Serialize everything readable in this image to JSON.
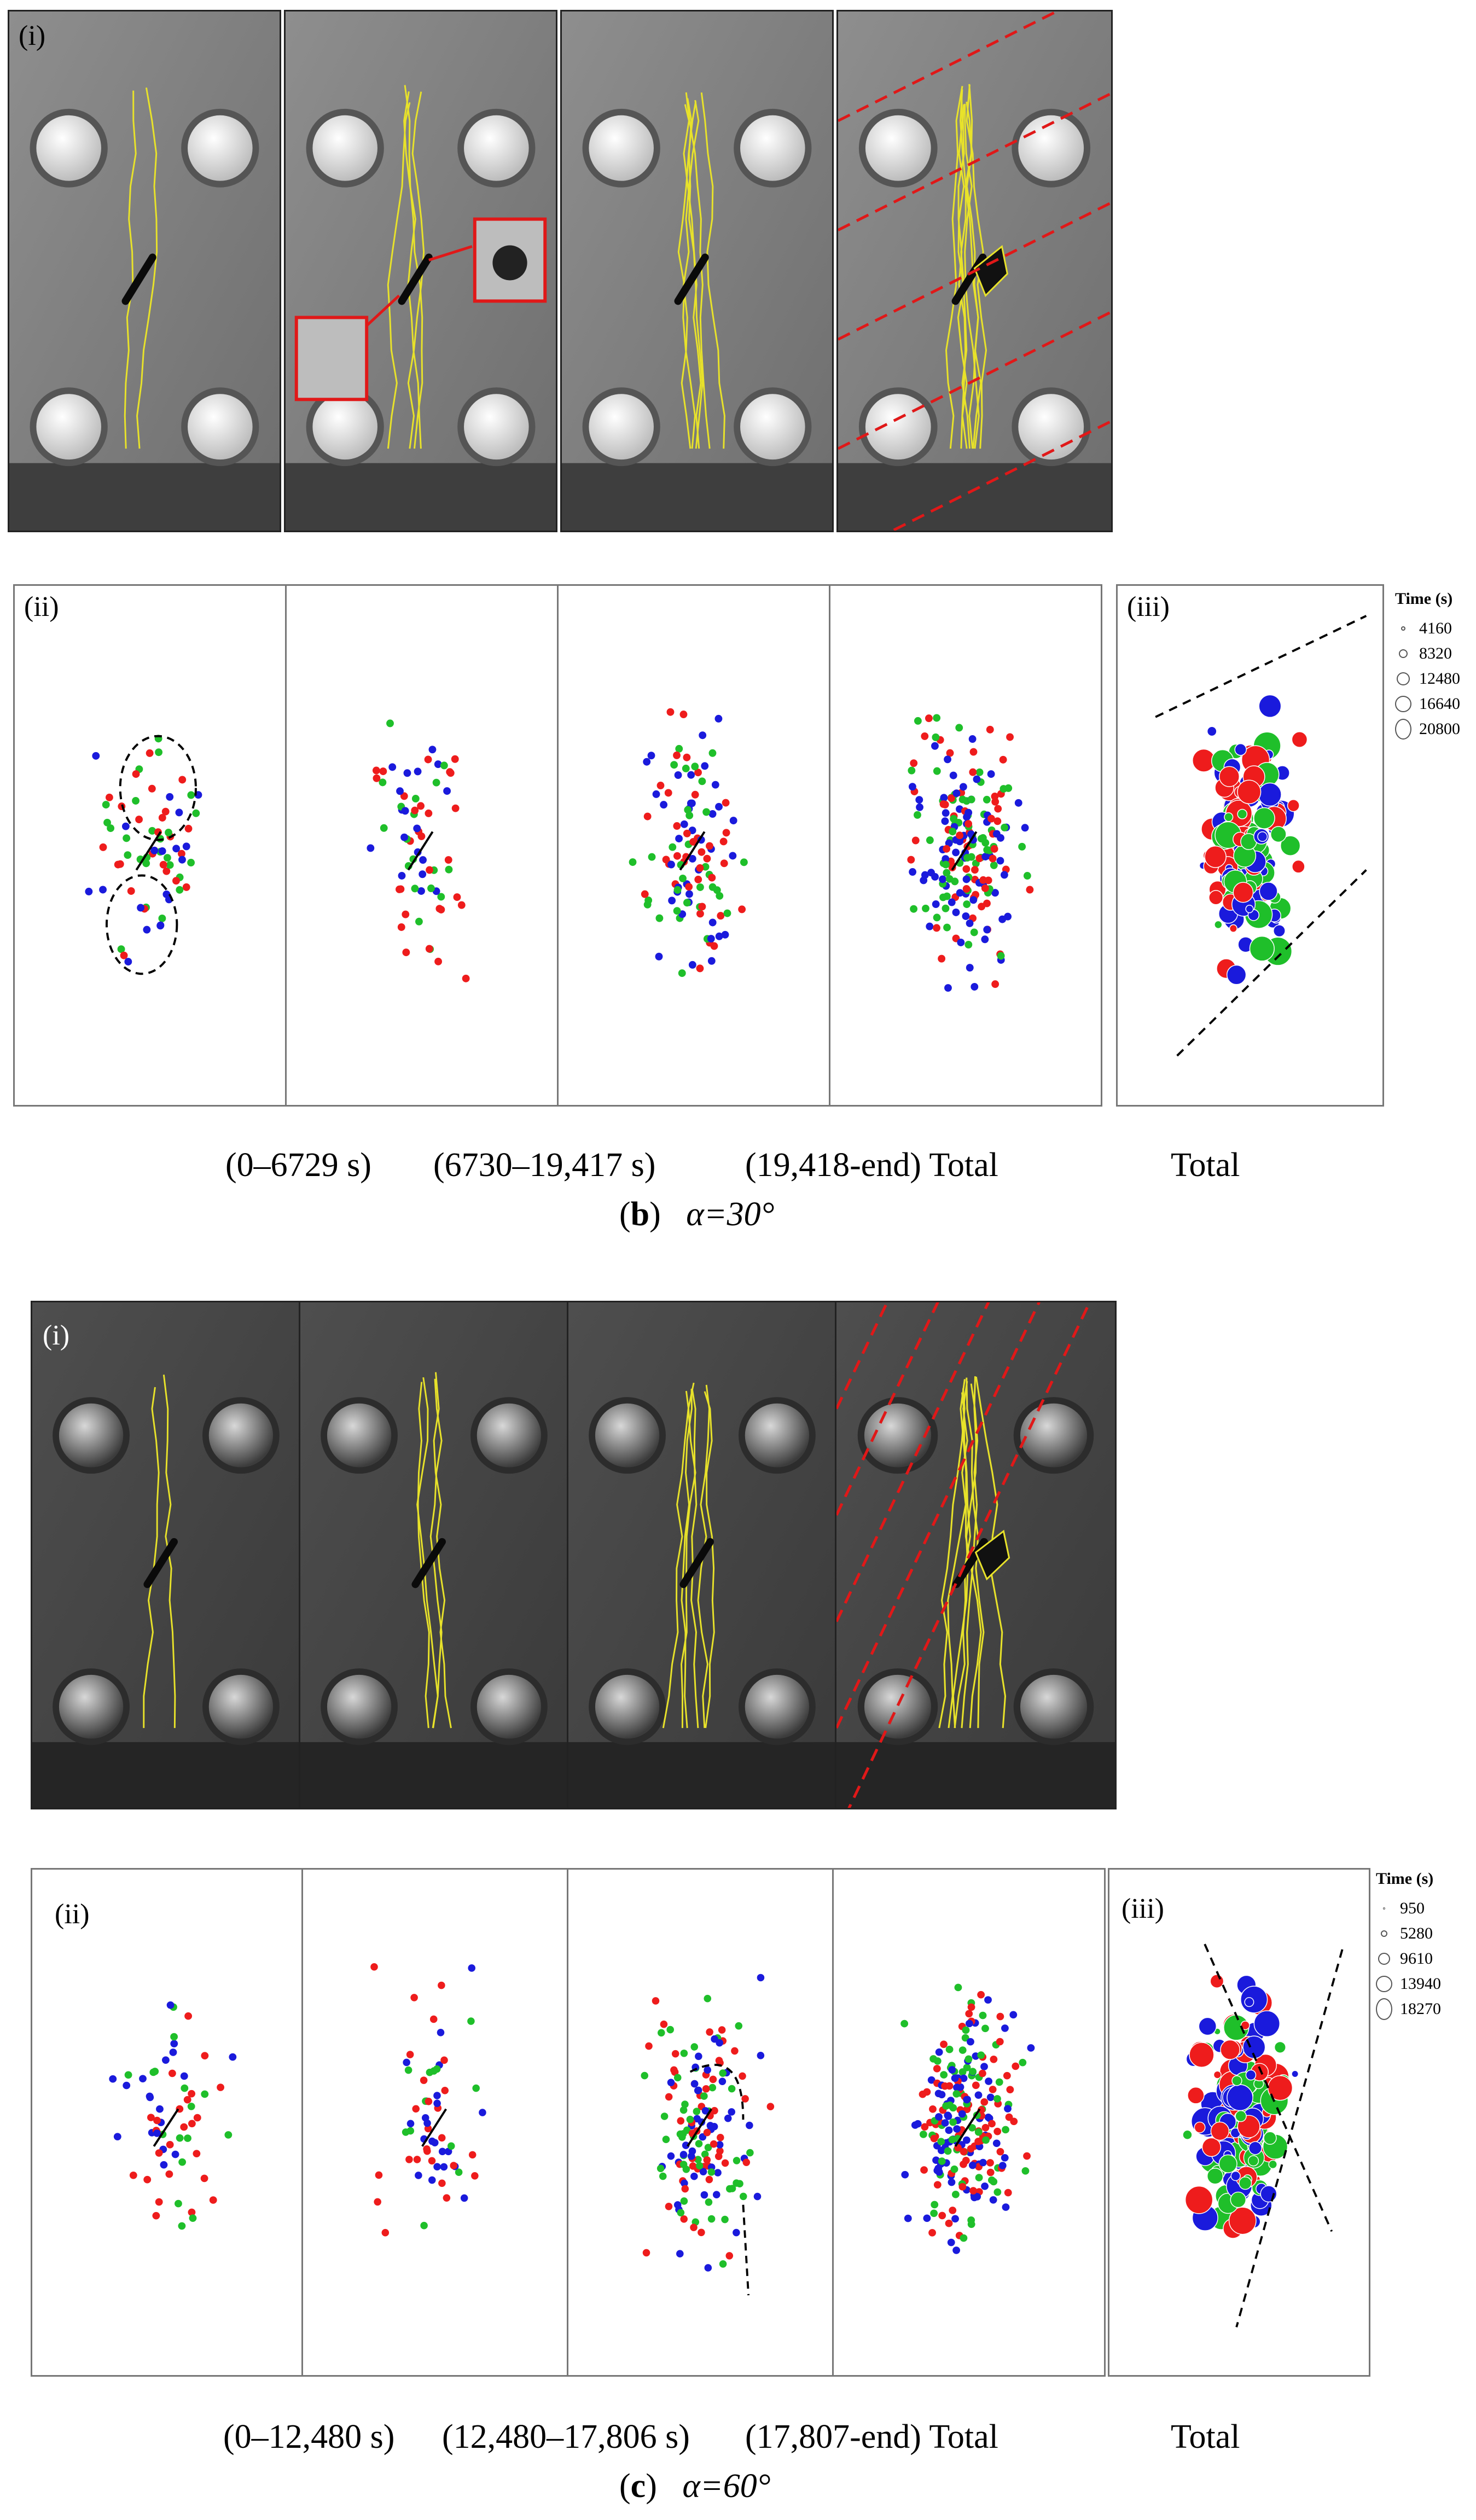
{
  "figure_b": {
    "photo_label": "(i)",
    "scatter_label": "(ii)",
    "total_label": "(iii)",
    "legend": {
      "title": "Time (s)",
      "items": [
        "4160",
        "8320",
        "12480",
        "16640",
        "20800"
      ]
    },
    "caption_ranges": [
      "(0–6729 s)",
      "(6730–19,417 s)",
      "(19,418-end) Total",
      "Total"
    ],
    "fig_letter": "b",
    "fig_angle": "α=30°"
  },
  "figure_c": {
    "photo_label": "(i)",
    "scatter_label": "(ii)",
    "total_label": "(iii)",
    "legend": {
      "title": "Time (s)",
      "items": [
        "950",
        "5280",
        "9610",
        "13940",
        "18270"
      ]
    },
    "caption_ranges": [
      "(0–12,480 s)",
      "(12,480–17,806 s)",
      "(17,807-end) Total",
      "Total"
    ],
    "fig_letter": "c",
    "fig_angle": "α=60°"
  },
  "colors": {
    "red": "#ee1c1c",
    "green": "#1fbf2a",
    "blue": "#1a1adc",
    "crack_yellow": "#e8e22a",
    "dash_red": "#e01818"
  }
}
